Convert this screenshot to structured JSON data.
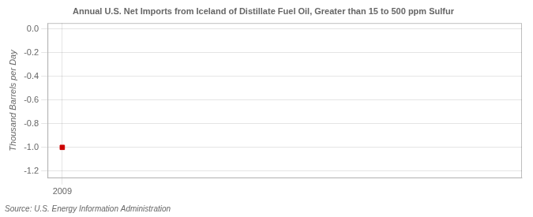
{
  "chart_data": {
    "type": "scatter",
    "title": "Annual U.S. Net Imports from Iceland of Distillate Fuel Oil, Greater than 15 to 500 ppm Sulfur",
    "y_label": "Thousand Barrels per Day",
    "source": "Source: U.S. Energy Information Administration",
    "x": [
      2009
    ],
    "values": [
      -1.0
    ],
    "color": "#cc0000",
    "marker": "square",
    "xlim": [
      2008.55,
      2023
    ],
    "xticks": [
      2009
    ],
    "ylim": [
      -1.26,
      0.05
    ],
    "yticks": [
      {
        "value": 0.0,
        "label": "0.0"
      },
      {
        "value": -0.2,
        "label": "-0.2"
      },
      {
        "value": -0.4,
        "label": "-0.4"
      },
      {
        "value": -0.6,
        "label": "-0.6"
      },
      {
        "value": -0.8,
        "label": "-0.8"
      },
      {
        "value": -1.0,
        "label": "-1.0"
      },
      {
        "value": -1.2,
        "label": "-1.2"
      }
    ],
    "grid": true
  }
}
